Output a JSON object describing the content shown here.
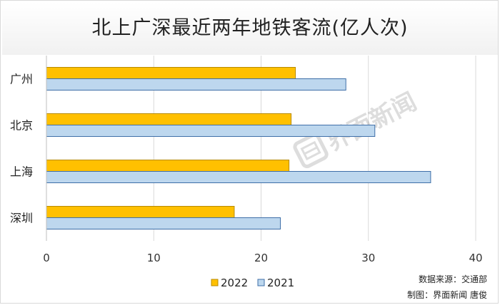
{
  "chart_data": {
    "type": "bar",
    "orientation": "horizontal",
    "title": "北上广深最近两年地铁客流(亿人次)",
    "categories": [
      "广州",
      "北京",
      "上海",
      "深圳"
    ],
    "series": [
      {
        "name": "2022",
        "color": "#ffc000",
        "values": [
          23.2,
          22.8,
          22.6,
          17.5
        ]
      },
      {
        "name": "2021",
        "color": "#bdd7ee",
        "values": [
          27.9,
          30.6,
          35.8,
          21.8
        ]
      }
    ],
    "xlim": [
      0,
      40
    ],
    "xticks": [
      "0",
      "10",
      "20",
      "30",
      "40"
    ],
    "xlabel": "",
    "ylabel": "",
    "grid": true,
    "legend": "bottom"
  },
  "footer": {
    "source": "数据来源：交通部",
    "credit": "制图：界面新闻 唐俊"
  },
  "watermark": "界面新闻"
}
